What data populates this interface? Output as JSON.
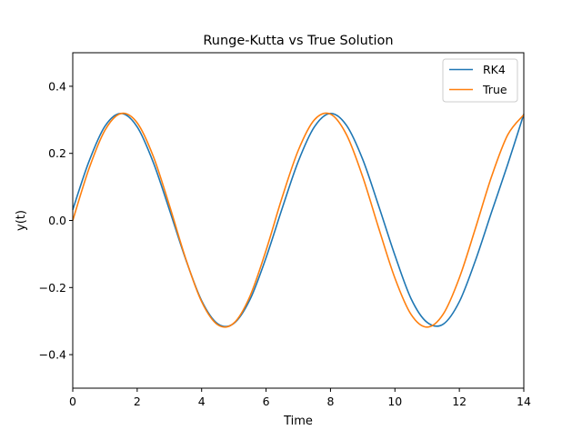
{
  "chart_data": {
    "type": "line",
    "title": "Runge-Kutta vs True Solution",
    "xlabel": "Time",
    "ylabel": "y(t)",
    "xlim": [
      0,
      14
    ],
    "ylim": [
      -0.5,
      0.5
    ],
    "xticks": [
      0,
      2,
      4,
      6,
      8,
      10,
      12,
      14
    ],
    "xtick_labels": [
      "0",
      "2",
      "4",
      "6",
      "8",
      "10",
      "12",
      "14"
    ],
    "yticks": [
      -0.4,
      -0.2,
      0.0,
      0.2,
      0.4
    ],
    "ytick_labels": [
      "−0.4",
      "−0.2",
      "0.0",
      "0.2",
      "0.4"
    ],
    "grid": false,
    "legend_position": "top-right",
    "x": [
      0,
      0.5,
      1,
      1.5,
      2,
      2.5,
      3,
      3.5,
      4,
      4.5,
      5,
      5.5,
      6,
      6.5,
      7,
      7.5,
      8,
      8.5,
      9,
      9.5,
      10,
      10.5,
      11,
      11.5,
      12,
      12.5,
      13,
      13.5,
      14
    ],
    "series": [
      {
        "name": "RK4",
        "color": "#1f77b4",
        "values": [
          0.032,
          0.175,
          0.281,
          0.319,
          0.279,
          0.173,
          0.032,
          -0.114,
          -0.239,
          -0.308,
          -0.307,
          -0.236,
          -0.111,
          0.036,
          0.176,
          0.279,
          0.319,
          0.283,
          0.182,
          0.042,
          -0.104,
          -0.233,
          -0.304,
          -0.309,
          -0.242,
          -0.119,
          0.025,
          0.167,
          0.317
        ]
      },
      {
        "name": "True",
        "color": "#ff7f0e",
        "values": [
          0.0,
          0.153,
          0.269,
          0.319,
          0.291,
          0.191,
          0.045,
          -0.112,
          -0.242,
          -0.311,
          -0.306,
          -0.226,
          -0.089,
          0.069,
          0.209,
          0.3,
          0.317,
          0.255,
          0.13,
          -0.024,
          -0.172,
          -0.28,
          -0.318,
          -0.279,
          -0.171,
          -0.023,
          0.131,
          0.255,
          0.315
        ]
      }
    ]
  }
}
